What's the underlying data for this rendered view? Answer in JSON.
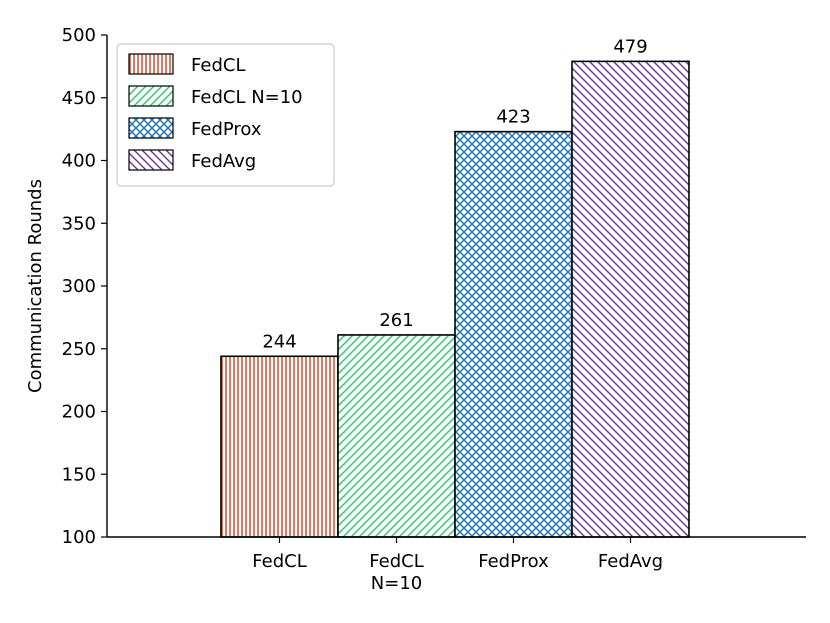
{
  "chart_data": {
    "type": "bar",
    "categories": [
      "FedCL",
      "FedCL\nN=10",
      "FedProx",
      "FedAvg"
    ],
    "values": [
      244,
      261,
      423,
      479
    ],
    "data_labels": [
      "244",
      "261",
      "423",
      "479"
    ],
    "ylabel": "Communication Rounds",
    "ylim": [
      100,
      500
    ],
    "yticks": [
      100,
      150,
      200,
      250,
      300,
      350,
      400,
      450,
      500
    ],
    "grid": false,
    "legend": {
      "placement": "top-left",
      "entries": [
        "FedCL",
        "FedCL N=10",
        "FedProx",
        "FedAvg"
      ]
    },
    "colors": [
      "#d9482b",
      "#2ecc71",
      "#1f78c1",
      "#6a3d9a"
    ],
    "hatches": [
      "vertical",
      "diagonal-forward",
      "crosshatch",
      "diagonal-back"
    ]
  }
}
